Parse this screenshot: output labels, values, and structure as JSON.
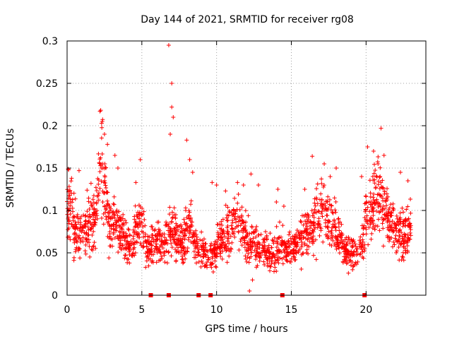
{
  "chart_data": {
    "type": "scatter",
    "title": "Day 144 of 2021, SRMTID for receiver rg08",
    "xlabel": "GPS time / hours",
    "ylabel": "SRMTID / TECUs",
    "xlim": [
      0,
      24
    ],
    "ylim": [
      0,
      0.3
    ],
    "xticks": [
      0,
      5,
      10,
      15,
      20
    ],
    "xtick_labels": [
      "0",
      "5",
      "10",
      "15",
      "20"
    ],
    "yticks": [
      0,
      0.05,
      0.1,
      0.15,
      0.2,
      0.25,
      0.3
    ],
    "ytick_labels": [
      "0",
      "0.05",
      "0.1",
      "0.15",
      "0.2",
      "0.25",
      "0.3"
    ],
    "grid": true,
    "marker": "+",
    "series_color": "#ff0000",
    "baseline_markers_x": [
      5.6,
      6.8,
      8.8,
      9.6,
      14.4,
      19.9
    ],
    "envelope": [
      [
        0.0,
        0.1
      ],
      [
        0.25,
        0.11
      ],
      [
        0.5,
        0.08
      ],
      [
        0.75,
        0.07
      ],
      [
        1.0,
        0.075
      ],
      [
        1.25,
        0.08
      ],
      [
        1.5,
        0.085
      ],
      [
        1.75,
        0.09
      ],
      [
        2.0,
        0.1
      ],
      [
        2.25,
        0.16
      ],
      [
        2.5,
        0.14
      ],
      [
        2.75,
        0.09
      ],
      [
        3.0,
        0.08
      ],
      [
        3.25,
        0.09
      ],
      [
        3.5,
        0.075
      ],
      [
        3.75,
        0.07
      ],
      [
        4.0,
        0.06
      ],
      [
        4.25,
        0.055
      ],
      [
        4.5,
        0.07
      ],
      [
        4.75,
        0.09
      ],
      [
        5.0,
        0.08
      ],
      [
        5.25,
        0.06
      ],
      [
        5.5,
        0.055
      ],
      [
        5.75,
        0.06
      ],
      [
        6.0,
        0.065
      ],
      [
        6.25,
        0.06
      ],
      [
        6.5,
        0.06
      ],
      [
        6.75,
        0.065
      ],
      [
        7.0,
        0.08
      ],
      [
        7.25,
        0.07
      ],
      [
        7.5,
        0.065
      ],
      [
        7.75,
        0.06
      ],
      [
        8.0,
        0.075
      ],
      [
        8.25,
        0.08
      ],
      [
        8.5,
        0.065
      ],
      [
        8.75,
        0.055
      ],
      [
        9.0,
        0.05
      ],
      [
        9.25,
        0.045
      ],
      [
        9.5,
        0.045
      ],
      [
        9.75,
        0.05
      ],
      [
        10.0,
        0.06
      ],
      [
        10.25,
        0.065
      ],
      [
        10.5,
        0.07
      ],
      [
        10.75,
        0.075
      ],
      [
        11.0,
        0.08
      ],
      [
        11.25,
        0.085
      ],
      [
        11.5,
        0.08
      ],
      [
        11.75,
        0.075
      ],
      [
        12.0,
        0.065
      ],
      [
        12.25,
        0.06
      ],
      [
        12.5,
        0.06
      ],
      [
        12.75,
        0.055
      ],
      [
        13.0,
        0.055
      ],
      [
        13.25,
        0.055
      ],
      [
        13.5,
        0.05
      ],
      [
        13.75,
        0.05
      ],
      [
        14.0,
        0.055
      ],
      [
        14.25,
        0.06
      ],
      [
        14.5,
        0.055
      ],
      [
        14.75,
        0.05
      ],
      [
        15.0,
        0.055
      ],
      [
        15.25,
        0.06
      ],
      [
        15.5,
        0.065
      ],
      [
        15.75,
        0.065
      ],
      [
        16.0,
        0.07
      ],
      [
        16.25,
        0.075
      ],
      [
        16.5,
        0.08
      ],
      [
        16.75,
        0.09
      ],
      [
        17.0,
        0.1
      ],
      [
        17.25,
        0.09
      ],
      [
        17.5,
        0.085
      ],
      [
        17.75,
        0.09
      ],
      [
        18.0,
        0.08
      ],
      [
        18.25,
        0.065
      ],
      [
        18.5,
        0.055
      ],
      [
        18.75,
        0.05
      ],
      [
        19.0,
        0.05
      ],
      [
        19.25,
        0.055
      ],
      [
        19.5,
        0.05
      ],
      [
        19.75,
        0.06
      ],
      [
        20.0,
        0.09
      ],
      [
        20.25,
        0.1
      ],
      [
        20.5,
        0.11
      ],
      [
        20.75,
        0.13
      ],
      [
        21.0,
        0.12
      ],
      [
        21.25,
        0.11
      ],
      [
        21.5,
        0.09
      ],
      [
        21.75,
        0.08
      ],
      [
        22.0,
        0.075
      ],
      [
        22.25,
        0.07
      ],
      [
        22.5,
        0.07
      ],
      [
        22.75,
        0.075
      ],
      [
        23.0,
        0.085
      ]
    ],
    "peaks": [
      [
        0.1,
        0.148
      ],
      [
        0.3,
        0.138
      ],
      [
        0.8,
        0.147
      ],
      [
        1.6,
        0.132
      ],
      [
        2.2,
        0.217
      ],
      [
        2.35,
        0.205
      ],
      [
        2.5,
        0.19
      ],
      [
        2.7,
        0.178
      ],
      [
        3.2,
        0.165
      ],
      [
        3.4,
        0.15
      ],
      [
        4.6,
        0.133
      ],
      [
        4.9,
        0.16
      ],
      [
        6.8,
        0.295
      ],
      [
        7.0,
        0.25
      ],
      [
        7.0,
        0.222
      ],
      [
        7.1,
        0.21
      ],
      [
        6.9,
        0.19
      ],
      [
        8.0,
        0.183
      ],
      [
        8.2,
        0.16
      ],
      [
        8.4,
        0.145
      ],
      [
        9.7,
        0.133
      ],
      [
        10.0,
        0.13
      ],
      [
        10.6,
        0.123
      ],
      [
        11.4,
        0.133
      ],
      [
        11.8,
        0.13
      ],
      [
        12.3,
        0.143
      ],
      [
        12.8,
        0.13
      ],
      [
        14.1,
        0.125
      ],
      [
        14.0,
        0.11
      ],
      [
        14.5,
        0.105
      ],
      [
        15.9,
        0.125
      ],
      [
        16.4,
        0.164
      ],
      [
        17.2,
        0.155
      ],
      [
        17.6,
        0.14
      ],
      [
        18.0,
        0.15
      ],
      [
        19.7,
        0.14
      ],
      [
        20.1,
        0.175
      ],
      [
        20.5,
        0.17
      ],
      [
        20.8,
        0.155
      ],
      [
        21.0,
        0.197
      ],
      [
        21.2,
        0.165
      ],
      [
        22.3,
        0.145
      ],
      [
        22.8,
        0.135
      ],
      [
        12.2,
        0.005
      ],
      [
        12.4,
        0.018
      ]
    ]
  }
}
